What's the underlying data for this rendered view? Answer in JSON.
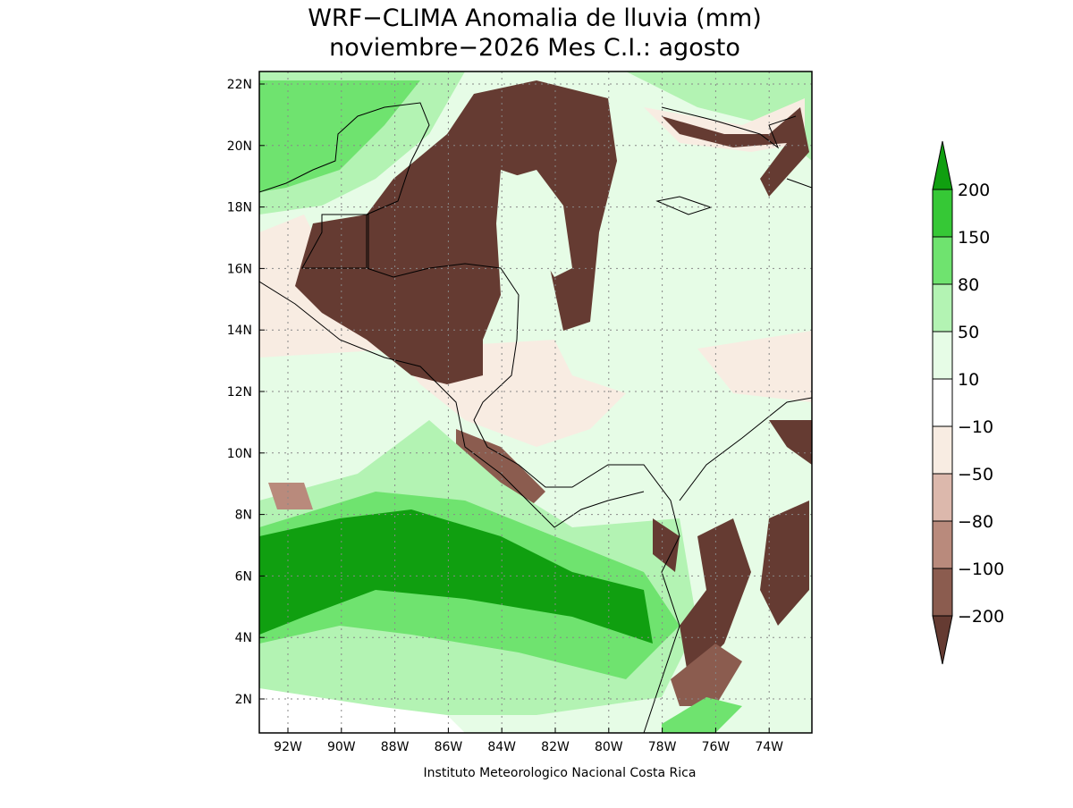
{
  "title": [
    "WRF−CLIMA Anomalia de lluvia (mm)",
    "noviembre−2026 Mes C.I.: agosto"
  ],
  "lat_labels": [
    "22N",
    "20N",
    "18N",
    "16N",
    "14N",
    "12N",
    "10N",
    "8N",
    "6N",
    "4N",
    "2N"
  ],
  "lon_labels": [
    "92W",
    "90W",
    "88W",
    "86W",
    "84W",
    "82W",
    "80W",
    "78W",
    "76W",
    "74W"
  ],
  "colorbar": {
    "levels": [
      "200",
      "150",
      "80",
      "50",
      "10",
      "−10",
      "−50",
      "−80",
      "−100",
      "−200"
    ],
    "colors": [
      "#109f10",
      "#36c836",
      "#6fe36f",
      "#b3f3b3",
      "#e6fce6",
      "#ffffff",
      "#f8ece2",
      "#dcb8ac",
      "#b98a7c",
      "#8b5c4f",
      "#653b32"
    ]
  },
  "credit": "Instituto Meteorologico Nacional Costa Rica"
}
